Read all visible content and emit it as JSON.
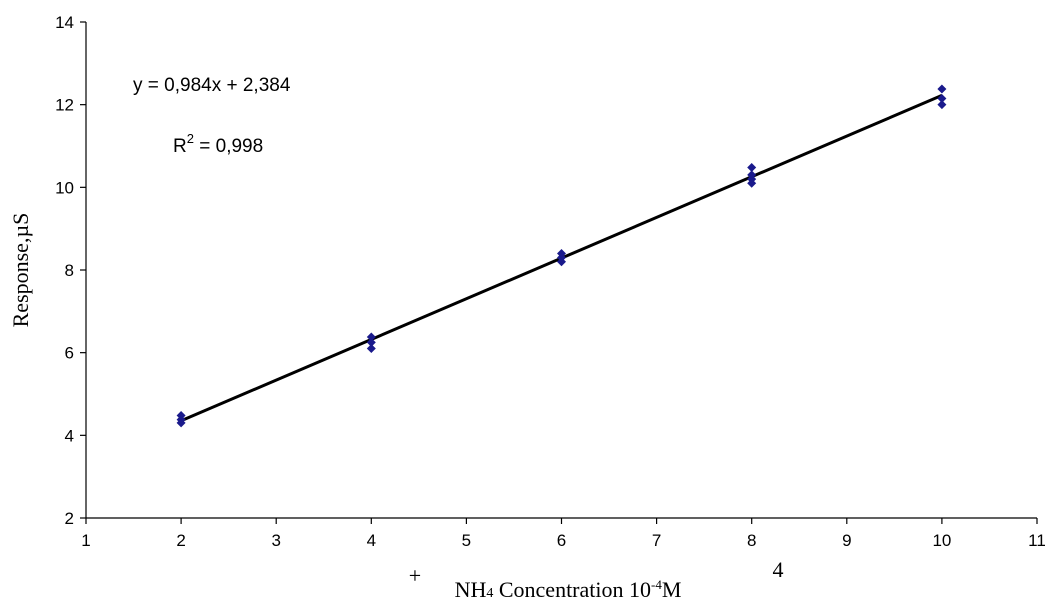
{
  "chart_data": {
    "type": "scatter",
    "x": [
      2,
      2,
      2,
      4,
      4,
      4,
      6,
      6,
      6,
      8,
      8,
      8,
      8,
      10,
      10,
      10
    ],
    "y": [
      4.3,
      4.38,
      4.48,
      6.1,
      6.25,
      6.38,
      8.2,
      8.3,
      8.4,
      10.1,
      10.2,
      10.3,
      10.48,
      12.0,
      12.15,
      12.38
    ],
    "trendline": {
      "slope": 0.984,
      "intercept": 2.384,
      "x_range": [
        2,
        10
      ]
    },
    "xlim": [
      1,
      11
    ],
    "ylim": [
      2,
      14
    ],
    "x_ticks": [
      "1",
      "2",
      "3",
      "4",
      "5",
      "6",
      "7",
      "8",
      "9",
      "10",
      "11"
    ],
    "y_ticks": [
      "2",
      "4",
      "6",
      "8",
      "10",
      "12",
      "14"
    ],
    "xlabel": {
      "prefix": "NH",
      "subscript": "4",
      "superscript": "+",
      "middle": " Concentration 10",
      "exponent": "-4",
      "unit": "M",
      "stray_mark": "4"
    },
    "ylabel": "Response,µS",
    "annotations": {
      "equation": "y = 0,984x + 2,384",
      "r2_prefix": "R",
      "r2_exponent": "2",
      "r2_value": " = 0,998"
    },
    "colors": {
      "marker": "#1a1a8c",
      "trendline": "#000000",
      "axis": "#000000"
    },
    "grid": false,
    "legend": "none"
  }
}
